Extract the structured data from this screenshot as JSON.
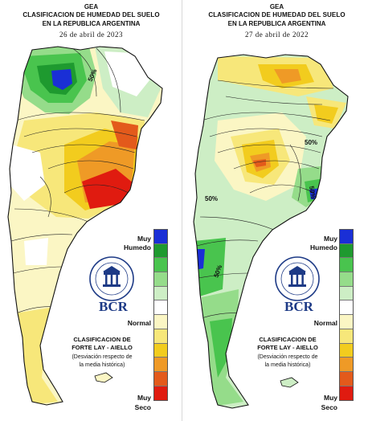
{
  "legend_colors": [
    "#1a2fd6",
    "#1e9a2f",
    "#49c44e",
    "#95dc8a",
    "#cdeec5",
    "#ffffff",
    "#fbf6c4",
    "#f7e77a",
    "#f2cc1e",
    "#ef9a26",
    "#e35a1b",
    "#e01b10"
  ],
  "panels": [
    {
      "org": "GEA",
      "title_line1": "CLASIFICACION DE HUMEDAD DEL SUELO",
      "title_line2": "EN LA REPUBLICA ARGENTINA",
      "date": "26 de abril de 2023",
      "label_muy_humedo_1": "Muy",
      "label_muy_humedo_2": "Humedo",
      "label_normal": "Normal",
      "label_muy_seco_1": "Muy",
      "label_muy_seco_2": "Seco",
      "logo_text": "BCR",
      "classification_line1": "CLASIFICACION DE",
      "classification_line2": "FORTE LAY - AIELLO",
      "deviation_line1": "(Desviación respecto de",
      "deviation_line2": "la media histórica)",
      "contour_labels": [
        "50%"
      ]
    },
    {
      "org": "GEA",
      "title_line1": "CLASIFICACION DE HUMEDAD DEL SUELO",
      "title_line2": "EN LA REPUBLICA ARGENTINA",
      "date": "27 de abril de 2022",
      "label_muy_humedo_1": "Muy",
      "label_muy_humedo_2": "Humedo",
      "label_normal": "Normal",
      "label_muy_seco_1": "Muy",
      "label_muy_seco_2": "Seco",
      "logo_text": "BCR",
      "classification_line1": "CLASIFICACION DE",
      "classification_line2": "FORTE LAY - AIELLO",
      "deviation_line1": "(Desviación respecto de",
      "deviation_line2": "la media histórica)",
      "contour_labels": [
        "50%",
        "50%",
        "50%",
        "50%"
      ]
    }
  ]
}
